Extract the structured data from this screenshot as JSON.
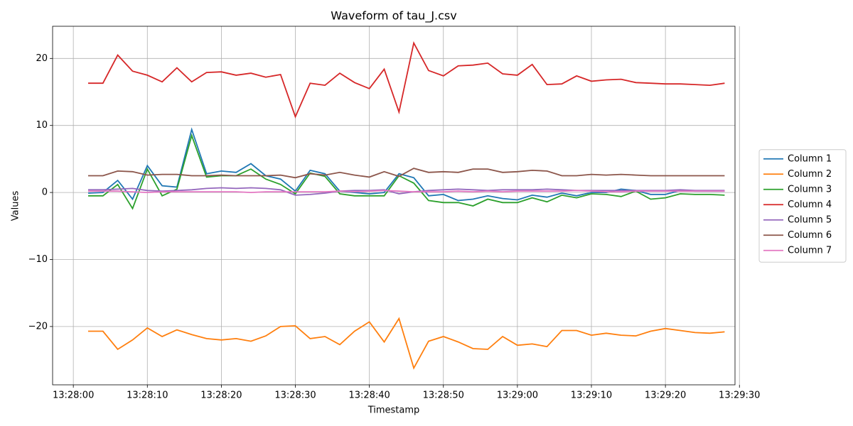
{
  "chart_data": {
    "type": "line",
    "title": "Waveform of tau_J.csv",
    "x_label": "Timestamp",
    "y_label": "Values",
    "x": [
      "13:28:02",
      "13:28:04",
      "13:28:06",
      "13:28:08",
      "13:28:10",
      "13:28:12",
      "13:28:14",
      "13:28:16",
      "13:28:18",
      "13:28:20",
      "13:28:22",
      "13:28:24",
      "13:28:26",
      "13:28:28",
      "13:28:30",
      "13:28:32",
      "13:28:34",
      "13:28:36",
      "13:28:38",
      "13:28:40",
      "13:28:42",
      "13:28:44",
      "13:28:46",
      "13:28:48",
      "13:28:50",
      "13:28:52",
      "13:28:54",
      "13:28:56",
      "13:28:58",
      "13:29:00",
      "13:29:02",
      "13:29:04",
      "13:29:06",
      "13:29:08",
      "13:29:10",
      "13:29:12",
      "13:29:14",
      "13:29:16",
      "13:29:18",
      "13:29:20",
      "13:29:22",
      "13:29:24",
      "13:29:26",
      "13:29:28"
    ],
    "series": [
      {
        "name": "Column 1",
        "color": "#1f77b4",
        "values": [
          -0.1,
          0.0,
          1.8,
          -1.0,
          4.0,
          1.0,
          0.8,
          9.4,
          2.8,
          3.2,
          3.0,
          4.3,
          2.5,
          2.0,
          0.2,
          3.3,
          2.8,
          0.2,
          0.0,
          -0.2,
          0.0,
          2.8,
          2.2,
          -0.5,
          -0.3,
          -1.2,
          -1.0,
          -0.5,
          -0.9,
          -1.1,
          -0.4,
          -0.7,
          -0.1,
          -0.5,
          0.0,
          0.0,
          0.5,
          0.3,
          -0.3,
          -0.3,
          0.3,
          0.2,
          0.2,
          0.2
        ]
      },
      {
        "name": "Column 2",
        "color": "#ff7f0e",
        "values": [
          -20.7,
          -20.7,
          -23.4,
          -22.0,
          -20.2,
          -21.5,
          -20.5,
          -21.2,
          -21.8,
          -22.0,
          -21.8,
          -22.2,
          -21.4,
          -20.0,
          -19.9,
          -21.8,
          -21.5,
          -22.7,
          -20.7,
          -19.3,
          -22.3,
          -18.8,
          -26.2,
          -22.2,
          -21.5,
          -22.3,
          -23.3,
          -23.4,
          -21.5,
          -22.8,
          -22.6,
          -23.0,
          -20.6,
          -20.6,
          -21.3,
          -21.0,
          -21.3,
          -21.4,
          -20.7,
          -20.3,
          -20.6,
          -20.9,
          -21.0,
          -20.8
        ]
      },
      {
        "name": "Column 3",
        "color": "#2ca02c",
        "values": [
          -0.5,
          -0.5,
          1.2,
          -2.4,
          3.5,
          -0.5,
          0.5,
          8.5,
          2.3,
          2.5,
          2.5,
          3.5,
          2.0,
          1.2,
          -0.2,
          2.9,
          2.4,
          -0.2,
          -0.5,
          -0.5,
          -0.5,
          2.5,
          1.4,
          -1.2,
          -1.5,
          -1.5,
          -2.0,
          -1.0,
          -1.5,
          -1.5,
          -0.8,
          -1.4,
          -0.4,
          -0.8,
          -0.2,
          -0.3,
          -0.6,
          0.2,
          -1.0,
          -0.8,
          -0.2,
          -0.3,
          -0.3,
          -0.4
        ]
      },
      {
        "name": "Column 4",
        "color": "#d62728",
        "values": [
          16.3,
          16.3,
          20.5,
          18.1,
          17.5,
          16.5,
          18.6,
          16.5,
          17.9,
          18.0,
          17.5,
          17.8,
          17.2,
          17.6,
          11.3,
          16.3,
          16.0,
          17.8,
          16.4,
          15.5,
          18.4,
          12.0,
          22.3,
          18.2,
          17.4,
          18.9,
          19.0,
          19.3,
          17.7,
          17.5,
          19.1,
          16.1,
          16.2,
          17.4,
          16.6,
          16.8,
          16.9,
          16.4,
          16.3,
          16.2,
          16.2,
          16.1,
          16.0,
          16.3
        ]
      },
      {
        "name": "Column 5",
        "color": "#9467bd",
        "values": [
          0.4,
          0.4,
          0.5,
          0.6,
          0.3,
          0.2,
          0.3,
          0.4,
          0.6,
          0.7,
          0.6,
          0.7,
          0.6,
          0.4,
          -0.4,
          -0.3,
          -0.1,
          0.2,
          0.3,
          0.3,
          0.4,
          -0.2,
          0.1,
          0.3,
          0.4,
          0.5,
          0.4,
          0.3,
          0.4,
          0.4,
          0.4,
          0.5,
          0.4,
          0.3,
          0.3,
          0.3,
          0.3,
          0.3,
          0.3,
          0.3,
          0.4,
          0.3,
          0.3,
          0.3
        ]
      },
      {
        "name": "Column 6",
        "color": "#8c564b",
        "values": [
          2.5,
          2.5,
          3.2,
          3.1,
          2.6,
          2.7,
          2.7,
          2.5,
          2.5,
          2.6,
          2.5,
          2.5,
          2.5,
          2.6,
          2.2,
          2.8,
          2.6,
          3.0,
          2.6,
          2.3,
          3.1,
          2.4,
          3.6,
          3.0,
          3.1,
          3.0,
          3.5,
          3.5,
          3.0,
          3.1,
          3.3,
          3.2,
          2.5,
          2.5,
          2.7,
          2.6,
          2.7,
          2.6,
          2.5,
          2.5,
          2.5,
          2.5,
          2.5,
          2.5
        ]
      },
      {
        "name": "Column 7",
        "color": "#e377c2",
        "values": [
          0.2,
          0.2,
          0.2,
          0.1,
          0.0,
          0.1,
          0.1,
          0.1,
          0.1,
          0.1,
          0.1,
          0.0,
          0.1,
          0.1,
          0.1,
          0.1,
          0.1,
          0.2,
          0.1,
          0.2,
          0.3,
          0.2,
          0.1,
          0.1,
          0.1,
          0.2,
          0.1,
          0.2,
          0.1,
          0.2,
          0.2,
          0.2,
          0.2,
          0.3,
          0.2,
          0.1,
          0.1,
          0.2,
          0.2,
          0.2,
          0.2,
          0.2,
          0.2,
          0.2
        ]
      }
    ],
    "xlim": [
      "13:27:57.2",
      "13:29:29.4"
    ],
    "xticks": [
      "13:28:00",
      "13:28:10",
      "13:28:20",
      "13:28:30",
      "13:28:40",
      "13:28:50",
      "13:29:00",
      "13:29:10",
      "13:29:20",
      "13:29:30"
    ],
    "ylim": [
      -28.7,
      24.8
    ],
    "yticks": [
      {
        "value": -20,
        "label": "−20"
      },
      {
        "value": -10,
        "label": "−10"
      },
      0,
      10,
      20
    ],
    "grid": true,
    "legend": "center right outside"
  }
}
